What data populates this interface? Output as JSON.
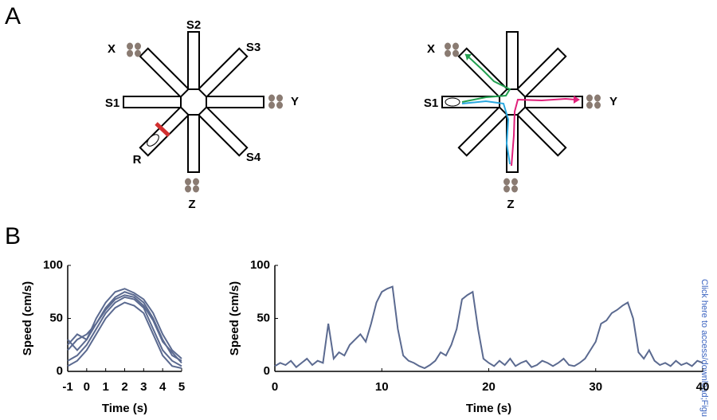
{
  "panel_labels": [
    "A",
    "B"
  ],
  "maze_left": [
    "X",
    "S2",
    "S3",
    "Y",
    "S1",
    "R",
    "S4",
    "Z"
  ],
  "maze_right": [
    "X",
    "S1",
    "Y",
    "Z"
  ],
  "side_note": "Click here to access/download;Figu",
  "chart_data": [
    {
      "type": "line",
      "xlabel": "Time (s)",
      "ylabel": "Speed (cm/s)",
      "x": [
        -1,
        -0.5,
        0,
        0.5,
        1,
        1.5,
        2,
        2.5,
        3,
        3.5,
        4,
        4.5,
        5
      ],
      "series": [
        {
          "color": "#5b6a90",
          "values": [
            20,
            30,
            35,
            45,
            60,
            70,
            75,
            72,
            65,
            50,
            30,
            15,
            10
          ]
        },
        {
          "color": "#5b6a90",
          "values": [
            10,
            15,
            25,
            40,
            55,
            65,
            70,
            68,
            60,
            40,
            20,
            10,
            5
          ]
        },
        {
          "color": "#5b6a90",
          "values": [
            30,
            20,
            30,
            50,
            65,
            75,
            78,
            74,
            68,
            55,
            35,
            20,
            12
          ]
        },
        {
          "color": "#5b6a90",
          "values": [
            5,
            10,
            20,
            35,
            50,
            60,
            65,
            62,
            55,
            35,
            15,
            5,
            3
          ]
        },
        {
          "color": "#5b6a90",
          "values": [
            25,
            35,
            30,
            45,
            58,
            68,
            72,
            70,
            62,
            48,
            28,
            18,
            8
          ]
        }
      ],
      "xlim": [
        -1,
        5
      ],
      "xticks": [
        -1,
        0,
        1,
        2,
        3,
        4,
        5
      ],
      "ylim": [
        0,
        100
      ],
      "yticks": [
        0,
        50,
        100
      ]
    },
    {
      "type": "line",
      "xlabel": "Time (s)",
      "ylabel": "Speed (cm/s)",
      "color": "#5b6a90",
      "x": [
        0,
        0.5,
        1,
        1.5,
        2,
        2.5,
        3,
        3.5,
        4,
        4.5,
        5,
        5.5,
        6,
        6.5,
        7,
        7.5,
        8,
        8.5,
        9,
        9.5,
        10,
        10.5,
        11,
        11.5,
        12,
        12.5,
        13,
        13.5,
        14,
        14.5,
        15,
        15.5,
        16,
        16.5,
        17,
        17.5,
        18,
        18.5,
        19,
        19.5,
        20,
        20.5,
        21,
        21.5,
        22,
        22.5,
        23,
        23.5,
        24,
        24.5,
        25,
        25.5,
        26,
        26.5,
        27,
        27.5,
        28,
        28.5,
        29,
        29.5,
        30,
        30.5,
        31,
        31.5,
        32,
        32.5,
        33,
        33.5,
        34,
        34.5,
        35,
        35.5,
        36,
        36.5,
        37,
        37.5,
        38,
        38.5,
        39,
        39.5,
        40
      ],
      "values": [
        5,
        8,
        6,
        10,
        4,
        8,
        12,
        6,
        10,
        8,
        45,
        12,
        18,
        15,
        25,
        30,
        35,
        28,
        45,
        65,
        75,
        78,
        80,
        40,
        15,
        10,
        8,
        5,
        3,
        6,
        10,
        18,
        15,
        25,
        40,
        68,
        72,
        75,
        40,
        12,
        8,
        5,
        10,
        6,
        12,
        5,
        8,
        10,
        4,
        6,
        10,
        8,
        5,
        8,
        12,
        6,
        5,
        8,
        12,
        20,
        28,
        45,
        48,
        55,
        58,
        62,
        65,
        50,
        18,
        12,
        20,
        10,
        6,
        8,
        5,
        10,
        6,
        8,
        5,
        10,
        8
      ],
      "xlim": [
        0,
        40
      ],
      "xticks": [
        0,
        10,
        20,
        30,
        40
      ],
      "ylim": [
        0,
        100
      ],
      "yticks": [
        0,
        50,
        100
      ]
    }
  ]
}
